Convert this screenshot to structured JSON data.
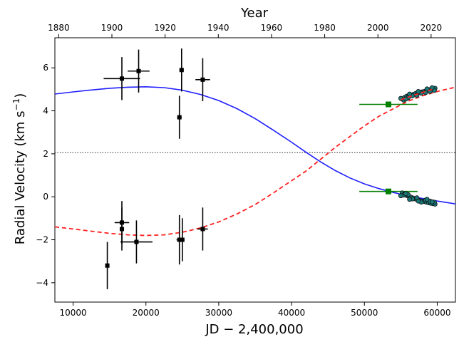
{
  "chart_data": {
    "type": "scatter",
    "xlabel": "JD − 2,400,000",
    "ylabel": "Radial Velocity (km s",
    "ylabel_sup": "−1",
    "ylabel_close": ")",
    "top_xlabel": "Year",
    "xlim": [
      7500,
      62500
    ],
    "ylim": [
      -4.9,
      7.4
    ],
    "xticks": [
      10000,
      20000,
      30000,
      40000,
      50000,
      60000
    ],
    "xtick_labels": [
      "10000",
      "20000",
      "30000",
      "40000",
      "50000",
      "60000"
    ],
    "yticks": [
      -4,
      -2,
      0,
      2,
      4,
      6
    ],
    "ytick_labels": [
      "−4",
      "−2",
      "0",
      "2",
      "4",
      "6"
    ],
    "top_ticks": [
      {
        "jd": 8024,
        "label": "1880"
      },
      {
        "jd": 15329,
        "label": "1900"
      },
      {
        "jd": 22634,
        "label": "1920"
      },
      {
        "jd": 29939,
        "label": "1940"
      },
      {
        "jd": 37244,
        "label": "1960"
      },
      {
        "jd": 44549,
        "label": "1980"
      },
      {
        "jd": 51854,
        "label": "2000"
      },
      {
        "jd": 59159,
        "label": "2020"
      }
    ],
    "systemic_velocity": 2.05,
    "colors": {
      "primary_curve": "#1f1fff",
      "secondary_curve": "#ff2020",
      "historic": "#000000",
      "modern_green": "#008000",
      "recent_fill": "#1a7a7a",
      "systemic_line": "#555555"
    },
    "series": [
      {
        "kind": "curve",
        "style": "solid",
        "points": [
          [
            7500,
            4.78
          ],
          [
            10000,
            4.88
          ],
          [
            12500,
            4.97
          ],
          [
            15000,
            5.05
          ],
          [
            17500,
            5.1
          ],
          [
            20000,
            5.12
          ],
          [
            22500,
            5.08
          ],
          [
            25000,
            4.96
          ],
          [
            27500,
            4.76
          ],
          [
            30000,
            4.48
          ],
          [
            32500,
            4.1
          ],
          [
            35000,
            3.64
          ],
          [
            37500,
            3.1
          ],
          [
            40000,
            2.54
          ],
          [
            42000,
            2.07
          ],
          [
            44000,
            1.62
          ],
          [
            46000,
            1.22
          ],
          [
            48000,
            0.88
          ],
          [
            50000,
            0.6
          ],
          [
            52000,
            0.38
          ],
          [
            54000,
            0.2
          ],
          [
            56000,
            0.04
          ],
          [
            58000,
            -0.08
          ],
          [
            60000,
            -0.2
          ],
          [
            62500,
            -0.33
          ]
        ]
      },
      {
        "kind": "curve",
        "style": "dashed",
        "points": [
          [
            7500,
            -1.4
          ],
          [
            10000,
            -1.5
          ],
          [
            12500,
            -1.6
          ],
          [
            15000,
            -1.7
          ],
          [
            17500,
            -1.77
          ],
          [
            20000,
            -1.8
          ],
          [
            22500,
            -1.77
          ],
          [
            25000,
            -1.65
          ],
          [
            27500,
            -1.45
          ],
          [
            30000,
            -1.17
          ],
          [
            32500,
            -0.8
          ],
          [
            35000,
            -0.36
          ],
          [
            37500,
            0.18
          ],
          [
            40000,
            0.75
          ],
          [
            42000,
            1.2
          ],
          [
            44000,
            1.75
          ],
          [
            46000,
            2.3
          ],
          [
            48000,
            2.8
          ],
          [
            50000,
            3.3
          ],
          [
            52000,
            3.75
          ],
          [
            54000,
            4.1
          ],
          [
            56000,
            4.45
          ],
          [
            58000,
            4.7
          ],
          [
            60000,
            4.9
          ],
          [
            62500,
            5.1
          ]
        ]
      },
      {
        "kind": "errorbar",
        "marker": "square",
        "points": [
          {
            "x": 16700,
            "y": 5.5,
            "xerr": 2500,
            "yerr": 1.0
          },
          {
            "x": 19000,
            "y": 5.85,
            "xerr": 1500,
            "yerr": 1.0
          },
          {
            "x": 24900,
            "y": 5.9,
            "xerr": 300,
            "yerr": 1.0
          },
          {
            "x": 24600,
            "y": 3.7,
            "xerr": 300,
            "yerr": 1.0
          },
          {
            "x": 27800,
            "y": 5.45,
            "xerr": 1000,
            "yerr": 1.0
          },
          {
            "x": 14700,
            "y": -3.2,
            "xerr": 200,
            "yerr": 1.1
          },
          {
            "x": 16700,
            "y": -1.2,
            "xerr": 1000,
            "yerr": 1.0
          },
          {
            "x": 16700,
            "y": -1.5,
            "xerr": 300,
            "yerr": 1.0
          },
          {
            "x": 18700,
            "y": -2.1,
            "xerr": 2200,
            "yerr": 1.0
          },
          {
            "x": 24600,
            "y": -2.0,
            "xerr": 400,
            "yerr": 1.15
          },
          {
            "x": 25000,
            "y": -2.0,
            "xerr": 300,
            "yerr": 1.0
          },
          {
            "x": 27800,
            "y": -1.5,
            "xerr": 700,
            "yerr": 1.0
          }
        ]
      },
      {
        "kind": "errorbar",
        "marker": "square-green",
        "points": [
          {
            "x": 53300,
            "y": 4.3,
            "xerr": 4000,
            "yerr": 0.12
          },
          {
            "x": 53300,
            "y": 0.25,
            "xerr": 4000,
            "yerr": 0.12
          }
        ]
      },
      {
        "kind": "points",
        "marker": "circle-teal",
        "points": [
          [
            55200,
            4.55
          ],
          [
            55500,
            4.62
          ],
          [
            55800,
            4.68
          ],
          [
            56100,
            4.7
          ],
          [
            56400,
            4.73
          ],
          [
            56700,
            4.76
          ],
          [
            57000,
            4.8
          ],
          [
            57300,
            4.83
          ],
          [
            57600,
            4.86
          ],
          [
            57900,
            4.88
          ],
          [
            58200,
            4.9
          ],
          [
            58500,
            4.94
          ],
          [
            58800,
            4.97
          ],
          [
            59100,
            5.0
          ],
          [
            59400,
            5.02
          ],
          [
            59700,
            5.05
          ],
          [
            55400,
            4.5
          ],
          [
            56000,
            4.6
          ],
          [
            56600,
            4.7
          ],
          [
            57200,
            4.72
          ],
          [
            57800,
            4.82
          ],
          [
            58400,
            4.85
          ],
          [
            59000,
            4.9
          ],
          [
            59600,
            4.95
          ],
          [
            55000,
            4.58
          ],
          [
            56200,
            4.78
          ],
          [
            57400,
            4.9
          ],
          [
            58600,
            5.02
          ],
          [
            59300,
            5.08
          ],
          [
            55700,
            4.55
          ],
          [
            55200,
            0.18
          ],
          [
            55500,
            0.12
          ],
          [
            55800,
            0.06
          ],
          [
            56100,
            0.02
          ],
          [
            56400,
            -0.02
          ],
          [
            56700,
            -0.06
          ],
          [
            57000,
            -0.1
          ],
          [
            57300,
            -0.14
          ],
          [
            57600,
            -0.18
          ],
          [
            57900,
            -0.2
          ],
          [
            58200,
            -0.22
          ],
          [
            58500,
            -0.25
          ],
          [
            58800,
            -0.28
          ],
          [
            59100,
            -0.3
          ],
          [
            59400,
            -0.32
          ],
          [
            59700,
            -0.34
          ],
          [
            55400,
            0.08
          ],
          [
            56000,
            0.1
          ],
          [
            56600,
            -0.1
          ],
          [
            57200,
            -0.05
          ],
          [
            57800,
            -0.25
          ],
          [
            58400,
            -0.15
          ],
          [
            59000,
            -0.2
          ],
          [
            59600,
            -0.25
          ],
          [
            55000,
            0.05
          ],
          [
            56200,
            -0.12
          ],
          [
            57400,
            -0.2
          ],
          [
            58600,
            -0.12
          ],
          [
            59300,
            -0.24
          ],
          [
            55700,
            0.15
          ]
        ]
      },
      {
        "kind": "curve",
        "style": "dashed-overlay",
        "points": [
          [
            55000,
            4.52
          ],
          [
            57000,
            4.75
          ],
          [
            59500,
            5.02
          ]
        ]
      }
    ]
  }
}
